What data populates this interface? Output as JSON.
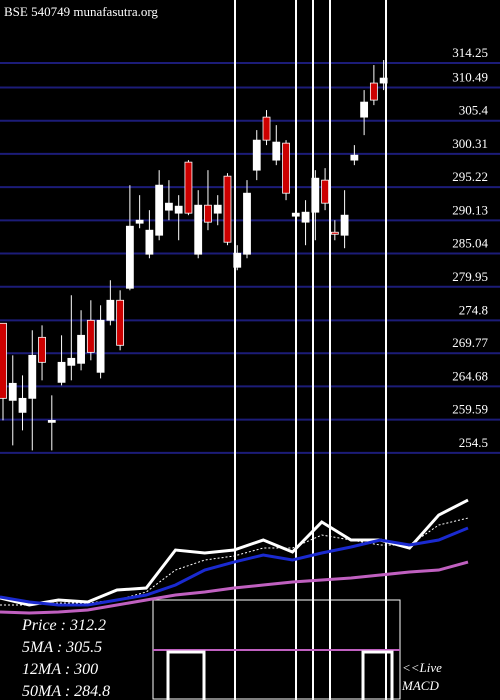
{
  "chart_data": [
    {
      "type": "candlestick",
      "title": "BSE 540749 munafasutra.org",
      "open": [
        274.35,
        262.54,
        260.7,
        262.85,
        272.2,
        259.17,
        265.3,
        267.91,
        268.22,
        274.81,
        266.84,
        274.81,
        277.88,
        279.72,
        289.69,
        284.94,
        287.85,
        291.69,
        291.23,
        299.05,
        284.94,
        292.45,
        291.23,
        296.9,
        282.94,
        284.94,
        297.82,
        305.95,
        299.36,
        301.96,
        290.77,
        289.85,
        291.38,
        296.29,
        288.31,
        287.85,
        299.36,
        305.95,
        311.17,
        311.17
      ],
      "high": [
        274.35,
        269.44,
        266.37,
        273.28,
        274.04,
        263.31,
        272.51,
        278.65,
        276.35,
        277.88,
        277.11,
        280.95,
        279.41,
        295.52,
        293.99,
        291.69,
        297.82,
        296.29,
        293.99,
        299.36,
        294.75,
        297.82,
        293.99,
        297.36,
        286.32,
        296.29,
        303.96,
        307.03,
        304.72,
        302.42,
        297.05,
        293.22,
        297.82,
        298.13,
        290.15,
        294.75,
        301.66,
        310.09,
        313.93,
        314.7
      ],
      "low": [
        259.47,
        255.64,
        257.94,
        254.87,
        265.61,
        254.87,
        264.84,
        265.61,
        267.14,
        268.68,
        265.91,
        274.04,
        270.21,
        279.41,
        288.92,
        284.32,
        287.08,
        290.15,
        287.08,
        290.92,
        284.32,
        288.62,
        289.38,
        286.32,
        282.48,
        284.32,
        296.29,
        301.66,
        298.59,
        293.22,
        286.32,
        286.32,
        287.08,
        291.69,
        287.08,
        285.86,
        298.59,
        303.19,
        307.79,
        310.09
      ],
      "close": [
        262.85,
        265.15,
        262.85,
        269.44,
        268.37,
        259.47,
        268.37,
        268.98,
        272.51,
        269.9,
        274.81,
        277.88,
        270.98,
        289.23,
        290.15,
        288.62,
        295.52,
        292.76,
        292.3,
        291.23,
        292.45,
        289.85,
        292.45,
        286.78,
        285.09,
        294.29,
        302.42,
        302.42,
        302.12,
        294.29,
        291.23,
        291.38,
        296.59,
        292.76,
        288,
        290.92,
        300.12,
        308.25,
        308.56,
        311.93
      ],
      "up_color": "#ffffff",
      "down_color": "#cc0000",
      "grid_color": "#1c1c78",
      "ylim": [
        253.4,
        323.9
      ],
      "yticks": [
        314.25,
        310.49,
        305.4,
        300.31,
        295.22,
        290.13,
        285.04,
        279.95,
        274.8,
        269.77,
        264.68,
        259.59,
        254.5
      ]
    },
    {
      "type": "line",
      "x": [
        0,
        3,
        6,
        9,
        12,
        15,
        18,
        21,
        24,
        27,
        30,
        33,
        36,
        39,
        42,
        45,
        48
      ],
      "xlim": [
        0,
        48
      ],
      "ylim": [
        240,
        330
      ],
      "series": [
        {
          "color": "#ffffff",
          "width": 3,
          "values": [
            254.14,
            249.64,
            252.85,
            251.57,
            259.28,
            260.57,
            284.99,
            283.06,
            284.99,
            291.41,
            283.7,
            302.98,
            291.41,
            291.41,
            286.27,
            307.48,
            317.12
          ]
        },
        {
          "color": "#ffffff",
          "width": 1,
          "dash": true,
          "values": [
            249.64,
            249.64,
            250.93,
            250.93,
            252.85,
            257.99,
            272.13,
            278.56,
            281.13,
            286.27,
            286.27,
            294.63,
            291.41,
            288.2,
            288.2,
            301.05,
            305.55
          ]
        },
        {
          "color": "#1a2ad0",
          "width": 3,
          "values": [
            254.78,
            251.57,
            249.64,
            249.64,
            252.85,
            256.07,
            262.49,
            272.13,
            277.27,
            281.77,
            278.56,
            283.06,
            286.92,
            291.41,
            288.2,
            291.41,
            299.13
          ]
        },
        {
          "color": "#c060c0",
          "width": 3,
          "values": [
            245.14,
            244.5,
            245.14,
            246.43,
            249.64,
            252.85,
            256.07,
            257.99,
            260.57,
            262.49,
            264.42,
            265.71,
            266.99,
            268.92,
            270.85,
            272.13,
            277.27
          ]
        }
      ],
      "annotations": [
        "Price   : 312.2",
        "5MA : 305.5",
        "12MA : 300",
        "50MA : 284.8",
        "<<Live",
        "MACD"
      ]
    }
  ]
}
